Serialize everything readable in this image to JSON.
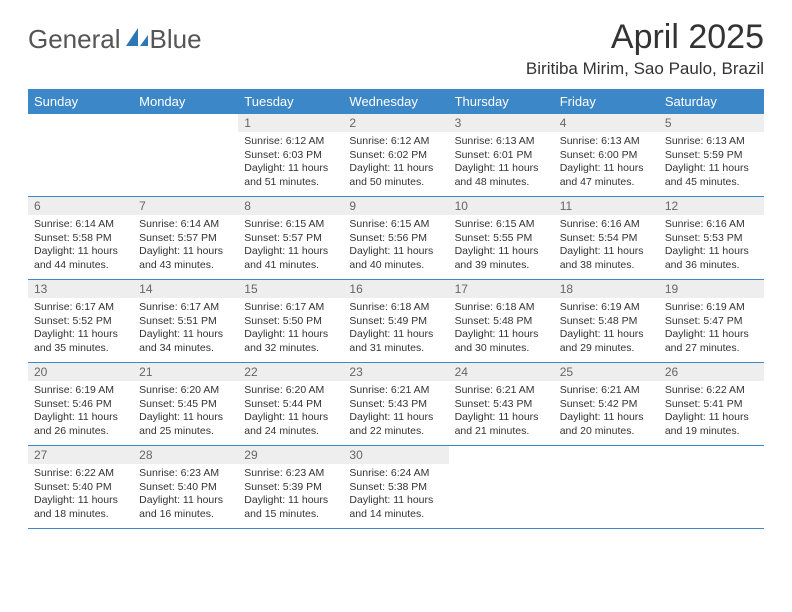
{
  "logo": {
    "text1": "General",
    "text2": "Blue",
    "icon_color": "#2f76b5"
  },
  "title": "April 2025",
  "location": "Biritiba Mirim, Sao Paulo, Brazil",
  "colors": {
    "header_bg": "#3b87c8",
    "header_fg": "#ffffff",
    "daynum_bg": "#eeeeee",
    "text": "#333333"
  },
  "weekdays": [
    "Sunday",
    "Monday",
    "Tuesday",
    "Wednesday",
    "Thursday",
    "Friday",
    "Saturday"
  ],
  "weeks": [
    [
      null,
      null,
      {
        "n": "1",
        "sr": "6:12 AM",
        "ss": "6:03 PM",
        "dl": "11 hours and 51 minutes."
      },
      {
        "n": "2",
        "sr": "6:12 AM",
        "ss": "6:02 PM",
        "dl": "11 hours and 50 minutes."
      },
      {
        "n": "3",
        "sr": "6:13 AM",
        "ss": "6:01 PM",
        "dl": "11 hours and 48 minutes."
      },
      {
        "n": "4",
        "sr": "6:13 AM",
        "ss": "6:00 PM",
        "dl": "11 hours and 47 minutes."
      },
      {
        "n": "5",
        "sr": "6:13 AM",
        "ss": "5:59 PM",
        "dl": "11 hours and 45 minutes."
      }
    ],
    [
      {
        "n": "6",
        "sr": "6:14 AM",
        "ss": "5:58 PM",
        "dl": "11 hours and 44 minutes."
      },
      {
        "n": "7",
        "sr": "6:14 AM",
        "ss": "5:57 PM",
        "dl": "11 hours and 43 minutes."
      },
      {
        "n": "8",
        "sr": "6:15 AM",
        "ss": "5:57 PM",
        "dl": "11 hours and 41 minutes."
      },
      {
        "n": "9",
        "sr": "6:15 AM",
        "ss": "5:56 PM",
        "dl": "11 hours and 40 minutes."
      },
      {
        "n": "10",
        "sr": "6:15 AM",
        "ss": "5:55 PM",
        "dl": "11 hours and 39 minutes."
      },
      {
        "n": "11",
        "sr": "6:16 AM",
        "ss": "5:54 PM",
        "dl": "11 hours and 38 minutes."
      },
      {
        "n": "12",
        "sr": "6:16 AM",
        "ss": "5:53 PM",
        "dl": "11 hours and 36 minutes."
      }
    ],
    [
      {
        "n": "13",
        "sr": "6:17 AM",
        "ss": "5:52 PM",
        "dl": "11 hours and 35 minutes."
      },
      {
        "n": "14",
        "sr": "6:17 AM",
        "ss": "5:51 PM",
        "dl": "11 hours and 34 minutes."
      },
      {
        "n": "15",
        "sr": "6:17 AM",
        "ss": "5:50 PM",
        "dl": "11 hours and 32 minutes."
      },
      {
        "n": "16",
        "sr": "6:18 AM",
        "ss": "5:49 PM",
        "dl": "11 hours and 31 minutes."
      },
      {
        "n": "17",
        "sr": "6:18 AM",
        "ss": "5:48 PM",
        "dl": "11 hours and 30 minutes."
      },
      {
        "n": "18",
        "sr": "6:19 AM",
        "ss": "5:48 PM",
        "dl": "11 hours and 29 minutes."
      },
      {
        "n": "19",
        "sr": "6:19 AM",
        "ss": "5:47 PM",
        "dl": "11 hours and 27 minutes."
      }
    ],
    [
      {
        "n": "20",
        "sr": "6:19 AM",
        "ss": "5:46 PM",
        "dl": "11 hours and 26 minutes."
      },
      {
        "n": "21",
        "sr": "6:20 AM",
        "ss": "5:45 PM",
        "dl": "11 hours and 25 minutes."
      },
      {
        "n": "22",
        "sr": "6:20 AM",
        "ss": "5:44 PM",
        "dl": "11 hours and 24 minutes."
      },
      {
        "n": "23",
        "sr": "6:21 AM",
        "ss": "5:43 PM",
        "dl": "11 hours and 22 minutes."
      },
      {
        "n": "24",
        "sr": "6:21 AM",
        "ss": "5:43 PM",
        "dl": "11 hours and 21 minutes."
      },
      {
        "n": "25",
        "sr": "6:21 AM",
        "ss": "5:42 PM",
        "dl": "11 hours and 20 minutes."
      },
      {
        "n": "26",
        "sr": "6:22 AM",
        "ss": "5:41 PM",
        "dl": "11 hours and 19 minutes."
      }
    ],
    [
      {
        "n": "27",
        "sr": "6:22 AM",
        "ss": "5:40 PM",
        "dl": "11 hours and 18 minutes."
      },
      {
        "n": "28",
        "sr": "6:23 AM",
        "ss": "5:40 PM",
        "dl": "11 hours and 16 minutes."
      },
      {
        "n": "29",
        "sr": "6:23 AM",
        "ss": "5:39 PM",
        "dl": "11 hours and 15 minutes."
      },
      {
        "n": "30",
        "sr": "6:24 AM",
        "ss": "5:38 PM",
        "dl": "11 hours and 14 minutes."
      },
      null,
      null,
      null
    ]
  ],
  "labels": {
    "sunrise": "Sunrise: ",
    "sunset": "Sunset: ",
    "daylight": "Daylight: "
  }
}
